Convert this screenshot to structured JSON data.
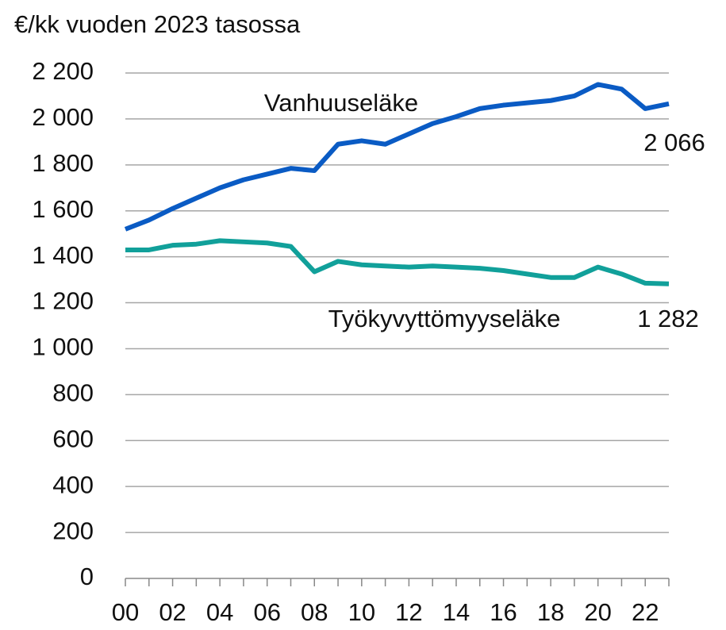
{
  "chart_data": {
    "type": "line",
    "ylabel": "€/kk vuoden 2023 tasossa",
    "x": [
      2000,
      2001,
      2002,
      2003,
      2004,
      2005,
      2006,
      2007,
      2008,
      2009,
      2010,
      2011,
      2012,
      2013,
      2014,
      2015,
      2016,
      2017,
      2018,
      2019,
      2020,
      2021,
      2022,
      2023
    ],
    "series": [
      {
        "name": "Vanhuuseläke",
        "color": "#0a5bc4",
        "values": [
          1520,
          1560,
          1610,
          1655,
          1700,
          1735,
          1760,
          1785,
          1775,
          1890,
          1905,
          1890,
          1935,
          1980,
          2010,
          2045,
          2060,
          2070,
          2080,
          2100,
          2150,
          2130,
          2045,
          2066
        ],
        "value_labels": [
          null,
          null,
          null,
          null,
          null,
          null,
          null,
          null,
          null,
          null,
          null,
          null,
          null,
          null,
          null,
          null,
          null,
          null,
          null,
          null,
          null,
          null,
          null,
          "2 066"
        ]
      },
      {
        "name": "Työkyvyttömyyseläke",
        "color": "#11a09a",
        "values": [
          1430,
          1430,
          1450,
          1455,
          1470,
          1465,
          1460,
          1445,
          1335,
          1380,
          1365,
          1360,
          1355,
          1360,
          1355,
          1350,
          1340,
          1325,
          1310,
          1310,
          1355,
          1325,
          1285,
          1282
        ],
        "value_labels": [
          null,
          null,
          null,
          null,
          null,
          null,
          null,
          null,
          null,
          null,
          null,
          null,
          null,
          null,
          null,
          null,
          null,
          null,
          null,
          null,
          null,
          null,
          null,
          "1 282"
        ]
      }
    ],
    "xlim": [
      2000,
      2023
    ],
    "xticks": [
      {
        "value": 2000,
        "label": "00"
      },
      {
        "value": 2002,
        "label": "02"
      },
      {
        "value": 2004,
        "label": "04"
      },
      {
        "value": 2006,
        "label": "06"
      },
      {
        "value": 2008,
        "label": "08"
      },
      {
        "value": 2010,
        "label": "10"
      },
      {
        "value": 2012,
        "label": "12"
      },
      {
        "value": 2014,
        "label": "14"
      },
      {
        "value": 2016,
        "label": "16"
      },
      {
        "value": 2018,
        "label": "18"
      },
      {
        "value": 2020,
        "label": "20"
      },
      {
        "value": 2022,
        "label": "22"
      }
    ],
    "xminorticks": [
      2001,
      2003,
      2005,
      2007,
      2009,
      2011,
      2013,
      2015,
      2017,
      2019,
      2021,
      2023
    ],
    "ylim": [
      0,
      2200
    ],
    "yticks": [
      0,
      200,
      400,
      600,
      800,
      {
        "value": 1000,
        "label": "1 000"
      },
      {
        "value": 1200,
        "label": "1 200"
      },
      {
        "value": 1400,
        "label": "1 400"
      },
      {
        "value": 1600,
        "label": "1 600"
      },
      {
        "value": 1800,
        "label": "1 800"
      },
      {
        "value": 2000,
        "label": "2 000"
      },
      {
        "value": 2200,
        "label": "2 200"
      }
    ],
    "grid": true
  }
}
